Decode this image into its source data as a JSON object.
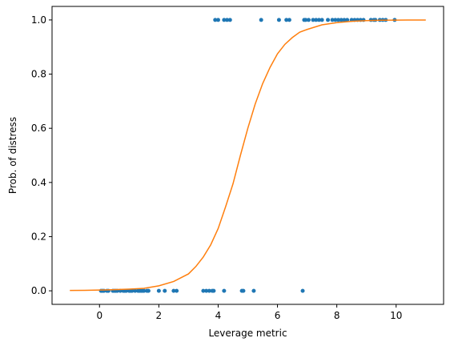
{
  "chart_data": {
    "type": "scatter",
    "title": "",
    "xlabel": "Leverage metric",
    "ylabel": "Prob. of distress",
    "xlim": [
      -1.6,
      11.6
    ],
    "ylim": [
      -0.05,
      1.05
    ],
    "x_ticks": [
      0,
      2,
      4,
      6,
      8,
      10
    ],
    "y_ticks": [
      0.0,
      0.2,
      0.4,
      0.6,
      0.8,
      1.0
    ],
    "x_tick_labels": [
      "0",
      "2",
      "4",
      "6",
      "8",
      "10"
    ],
    "y_tick_labels": [
      "0.0",
      "0.2",
      "0.4",
      "0.6",
      "0.8",
      "1.0"
    ],
    "grid": false,
    "legend": "none",
    "colors": {
      "points": "#1f77b4",
      "curve": "#ff7f0e",
      "axes": "#000000"
    },
    "series": [
      {
        "kind": "scatter",
        "points": [
          {
            "x": 0.05,
            "y": 0
          },
          {
            "x": 0.1,
            "y": 0
          },
          {
            "x": 0.15,
            "y": 0
          },
          {
            "x": 0.25,
            "y": 0
          },
          {
            "x": 0.3,
            "y": 0
          },
          {
            "x": 0.45,
            "y": 0
          },
          {
            "x": 0.5,
            "y": 0
          },
          {
            "x": 0.55,
            "y": 0
          },
          {
            "x": 0.6,
            "y": 0
          },
          {
            "x": 0.7,
            "y": 0
          },
          {
            "x": 0.8,
            "y": 0
          },
          {
            "x": 0.85,
            "y": 0
          },
          {
            "x": 0.9,
            "y": 0
          },
          {
            "x": 1.0,
            "y": 0
          },
          {
            "x": 1.05,
            "y": 0
          },
          {
            "x": 1.1,
            "y": 0
          },
          {
            "x": 1.2,
            "y": 0
          },
          {
            "x": 1.3,
            "y": 0
          },
          {
            "x": 1.35,
            "y": 0
          },
          {
            "x": 1.4,
            "y": 0
          },
          {
            "x": 1.45,
            "y": 0
          },
          {
            "x": 1.5,
            "y": 0
          },
          {
            "x": 1.6,
            "y": 0
          },
          {
            "x": 1.65,
            "y": 0
          },
          {
            "x": 2.0,
            "y": 0
          },
          {
            "x": 2.2,
            "y": 0
          },
          {
            "x": 2.5,
            "y": 0
          },
          {
            "x": 2.6,
            "y": 0
          },
          {
            "x": 3.5,
            "y": 0
          },
          {
            "x": 3.6,
            "y": 0
          },
          {
            "x": 3.7,
            "y": 0
          },
          {
            "x": 3.8,
            "y": 0
          },
          {
            "x": 3.85,
            "y": 0
          },
          {
            "x": 4.2,
            "y": 0
          },
          {
            "x": 4.8,
            "y": 0
          },
          {
            "x": 4.85,
            "y": 0
          },
          {
            "x": 5.2,
            "y": 0
          },
          {
            "x": 6.85,
            "y": 0
          },
          {
            "x": 3.9,
            "y": 1
          },
          {
            "x": 4.0,
            "y": 1
          },
          {
            "x": 4.2,
            "y": 1
          },
          {
            "x": 4.3,
            "y": 1
          },
          {
            "x": 4.4,
            "y": 1
          },
          {
            "x": 5.45,
            "y": 1
          },
          {
            "x": 6.05,
            "y": 1
          },
          {
            "x": 6.3,
            "y": 1
          },
          {
            "x": 6.4,
            "y": 1
          },
          {
            "x": 6.9,
            "y": 1
          },
          {
            "x": 6.95,
            "y": 1
          },
          {
            "x": 7.05,
            "y": 1
          },
          {
            "x": 7.2,
            "y": 1
          },
          {
            "x": 7.3,
            "y": 1
          },
          {
            "x": 7.4,
            "y": 1
          },
          {
            "x": 7.5,
            "y": 1
          },
          {
            "x": 7.7,
            "y": 1
          },
          {
            "x": 7.85,
            "y": 1
          },
          {
            "x": 7.95,
            "y": 1
          },
          {
            "x": 8.05,
            "y": 1
          },
          {
            "x": 8.15,
            "y": 1
          },
          {
            "x": 8.25,
            "y": 1
          },
          {
            "x": 8.35,
            "y": 1
          },
          {
            "x": 8.5,
            "y": 1
          },
          {
            "x": 8.6,
            "y": 1
          },
          {
            "x": 8.7,
            "y": 1
          },
          {
            "x": 8.8,
            "y": 1
          },
          {
            "x": 8.9,
            "y": 1
          },
          {
            "x": 9.15,
            "y": 1
          },
          {
            "x": 9.25,
            "y": 1
          },
          {
            "x": 9.3,
            "y": 1
          },
          {
            "x": 9.45,
            "y": 1
          },
          {
            "x": 9.55,
            "y": 1
          },
          {
            "x": 9.65,
            "y": 1
          },
          {
            "x": 9.95,
            "y": 1
          }
        ]
      },
      {
        "kind": "line",
        "points": [
          {
            "x": -1.0,
            "y": 0.0013
          },
          {
            "x": -0.5,
            "y": 0.0019
          },
          {
            "x": 0.0,
            "y": 0.0028
          },
          {
            "x": 0.5,
            "y": 0.0042
          },
          {
            "x": 1.0,
            "y": 0.0062
          },
          {
            "x": 1.5,
            "y": 0.0092
          },
          {
            "x": 2.0,
            "y": 0.0184
          },
          {
            "x": 2.5,
            "y": 0.0345
          },
          {
            "x": 3.0,
            "y": 0.0625
          },
          {
            "x": 3.25,
            "y": 0.09
          },
          {
            "x": 3.5,
            "y": 0.125
          },
          {
            "x": 3.75,
            "y": 0.17
          },
          {
            "x": 4.0,
            "y": 0.23
          },
          {
            "x": 4.25,
            "y": 0.31
          },
          {
            "x": 4.5,
            "y": 0.395
          },
          {
            "x": 4.75,
            "y": 0.5
          },
          {
            "x": 5.0,
            "y": 0.6
          },
          {
            "x": 5.25,
            "y": 0.69
          },
          {
            "x": 5.5,
            "y": 0.765
          },
          {
            "x": 5.75,
            "y": 0.825
          },
          {
            "x": 6.0,
            "y": 0.875
          },
          {
            "x": 6.25,
            "y": 0.91
          },
          {
            "x": 6.5,
            "y": 0.935
          },
          {
            "x": 6.75,
            "y": 0.955
          },
          {
            "x": 7.0,
            "y": 0.965
          },
          {
            "x": 7.5,
            "y": 0.982
          },
          {
            "x": 8.0,
            "y": 0.99
          },
          {
            "x": 8.5,
            "y": 0.995
          },
          {
            "x": 9.0,
            "y": 0.9975
          },
          {
            "x": 9.5,
            "y": 0.9988
          },
          {
            "x": 10.0,
            "y": 0.9994
          },
          {
            "x": 10.5,
            "y": 0.9997
          },
          {
            "x": 11.0,
            "y": 0.9999
          }
        ]
      }
    ]
  }
}
